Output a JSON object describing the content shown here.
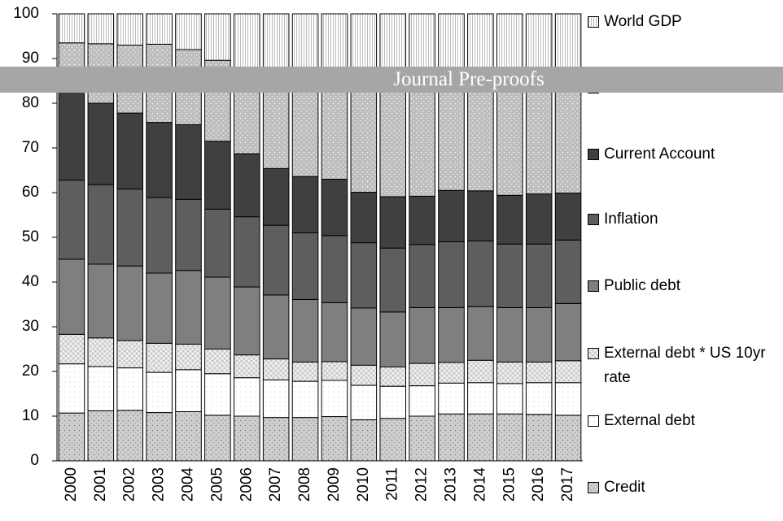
{
  "banner": "Journal Pre-proofs",
  "chart_data": {
    "type": "stacked_bar",
    "categories": [
      "2000",
      "2001",
      "2002",
      "2003",
      "2004",
      "2005",
      "2006",
      "2007",
      "2008",
      "2009",
      "2010",
      "2011",
      "2012",
      "2013",
      "2014",
      "2015",
      "2016",
      "2017"
    ],
    "ylim": [
      0,
      100
    ],
    "yticks": [
      0,
      10,
      20,
      30,
      40,
      50,
      60,
      70,
      80,
      90,
      100
    ],
    "series": [
      {
        "name": "Credit",
        "color": "#cfcfcf",
        "pattern": "dots",
        "values": [
          10.7,
          11.2,
          11.3,
          10.8,
          11.0,
          10.2,
          10.0,
          9.7,
          9.7,
          9.9,
          9.2,
          9.5,
          10.0,
          10.5,
          10.5,
          10.5,
          10.4,
          10.2
        ]
      },
      {
        "name": "External debt",
        "color": "#ffffff",
        "pattern": "sparse",
        "values": [
          11.0,
          9.9,
          9.5,
          9.0,
          9.4,
          9.3,
          8.6,
          8.4,
          8.1,
          8.1,
          7.7,
          7.2,
          6.8,
          6.9,
          7.0,
          6.8,
          7.1,
          7.3
        ]
      },
      {
        "name": "External debt * US 10yr rate",
        "color": "#cccccc",
        "pattern": "cross",
        "values": [
          6.6,
          6.4,
          6.1,
          6.5,
          5.7,
          5.5,
          5.1,
          4.7,
          4.3,
          4.2,
          4.5,
          4.3,
          5.0,
          4.6,
          5.0,
          4.8,
          4.6,
          4.9
        ]
      },
      {
        "name": "Public debt",
        "color": "#7f7f7f",
        "pattern": "none",
        "values": [
          16.8,
          16.5,
          16.7,
          15.7,
          16.5,
          16.1,
          15.2,
          14.3,
          14.0,
          13.2,
          12.8,
          12.3,
          12.5,
          12.3,
          12.0,
          12.2,
          12.2,
          12.8
        ]
      },
      {
        "name": "Inflation",
        "color": "#5e5e5e",
        "pattern": "none",
        "values": [
          17.7,
          17.8,
          17.2,
          16.9,
          15.9,
          15.2,
          15.7,
          15.6,
          14.9,
          15.0,
          14.6,
          14.3,
          14.1,
          14.7,
          14.7,
          14.2,
          14.2,
          14.2
        ]
      },
      {
        "name": "Current Account",
        "color": "#404040",
        "pattern": "none",
        "values": [
          22.7,
          18.2,
          17.0,
          16.8,
          16.7,
          15.2,
          14.1,
          12.7,
          12.6,
          12.6,
          11.3,
          11.5,
          10.8,
          11.5,
          11.2,
          10.9,
          11.2,
          10.5
        ]
      },
      {
        "color": "#bdbdbd",
        "pattern": "whitedots",
        "values": [
          8.0,
          13.3,
          15.2,
          17.5,
          16.8,
          18.1,
          18.3,
          21.6,
          23.4,
          24.0,
          26.9,
          27.9,
          27.8,
          26.5,
          26.6,
          27.6,
          27.3,
          27.1
        ]
      },
      {
        "name": "World GDP",
        "color": "#ffffff",
        "pattern": "vstripes",
        "values": [
          6.5,
          6.7,
          7.0,
          6.8,
          8.0,
          10.4,
          13.0,
          13.0,
          13.0,
          13.0,
          13.0,
          13.0,
          13.0,
          13.0,
          13.0,
          13.0,
          13.0,
          13.0
        ]
      }
    ]
  }
}
